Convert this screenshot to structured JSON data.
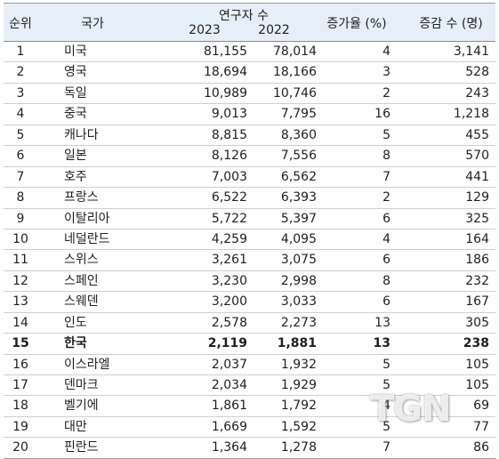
{
  "header": {
    "rank": "순위",
    "country": "국가",
    "researchers": "연구자 수",
    "year_2023": "2023",
    "year_2022": "2022",
    "growth_rate": "증가율 (%)",
    "change": "증감 수 (명)"
  },
  "rows": [
    {
      "rank": "1",
      "country": "미국",
      "y2023": "81,155",
      "y2022": "78,014",
      "rate": "4",
      "change": "3,141"
    },
    {
      "rank": "2",
      "country": "영국",
      "y2023": "18,694",
      "y2022": "18,166",
      "rate": "3",
      "change": "528"
    },
    {
      "rank": "3",
      "country": "독일",
      "y2023": "10,989",
      "y2022": "10,746",
      "rate": "2",
      "change": "243"
    },
    {
      "rank": "4",
      "country": "중국",
      "y2023": "9,013",
      "y2022": "7,795",
      "rate": "16",
      "change": "1,218"
    },
    {
      "rank": "5",
      "country": "캐나다",
      "y2023": "8,815",
      "y2022": "8,360",
      "rate": "5",
      "change": "455"
    },
    {
      "rank": "6",
      "country": "일본",
      "y2023": "8,126",
      "y2022": "7,556",
      "rate": "8",
      "change": "570"
    },
    {
      "rank": "7",
      "country": "호주",
      "y2023": "7,003",
      "y2022": "6,562",
      "rate": "7",
      "change": "441"
    },
    {
      "rank": "8",
      "country": "프랑스",
      "y2023": "6,522",
      "y2022": "6,393",
      "rate": "2",
      "change": "129"
    },
    {
      "rank": "9",
      "country": "이탈리아",
      "y2023": "5,722",
      "y2022": "5,397",
      "rate": "6",
      "change": "325"
    },
    {
      "rank": "10",
      "country": "네덜란드",
      "y2023": "4,259",
      "y2022": "4,095",
      "rate": "4",
      "change": "164"
    },
    {
      "rank": "11",
      "country": "스위스",
      "y2023": "3,261",
      "y2022": "3,075",
      "rate": "6",
      "change": "186"
    },
    {
      "rank": "12",
      "country": "스페인",
      "y2023": "3,230",
      "y2022": "2,998",
      "rate": "8",
      "change": "232"
    },
    {
      "rank": "13",
      "country": "스웨덴",
      "y2023": "3,200",
      "y2022": "3,033",
      "rate": "6",
      "change": "167"
    },
    {
      "rank": "14",
      "country": "인도",
      "y2023": "2,578",
      "y2022": "2,273",
      "rate": "13",
      "change": "305"
    },
    {
      "rank": "15",
      "country": "한국",
      "y2023": "2,119",
      "y2022": "1,881",
      "rate": "13",
      "change": "238",
      "highlight": true
    },
    {
      "rank": "16",
      "country": "이스라엘",
      "y2023": "2,037",
      "y2022": "1,932",
      "rate": "5",
      "change": "105"
    },
    {
      "rank": "17",
      "country": "덴마크",
      "y2023": "2,034",
      "y2022": "1,929",
      "rate": "5",
      "change": "105"
    },
    {
      "rank": "18",
      "country": "벨기에",
      "y2023": "1,861",
      "y2022": "1,792",
      "rate": "4",
      "change": "69"
    },
    {
      "rank": "19",
      "country": "대만",
      "y2023": "1,669",
      "y2022": "1,592",
      "rate": "5",
      "change": "77"
    },
    {
      "rank": "20",
      "country": "핀란드",
      "y2023": "1,364",
      "y2022": "1,278",
      "rate": "7",
      "change": "86"
    }
  ],
  "watermark": "TGN",
  "colors": {
    "header_bg": "#e6eef8",
    "text": "#1f1f1f",
    "row_divider": "#cfcfcf"
  }
}
